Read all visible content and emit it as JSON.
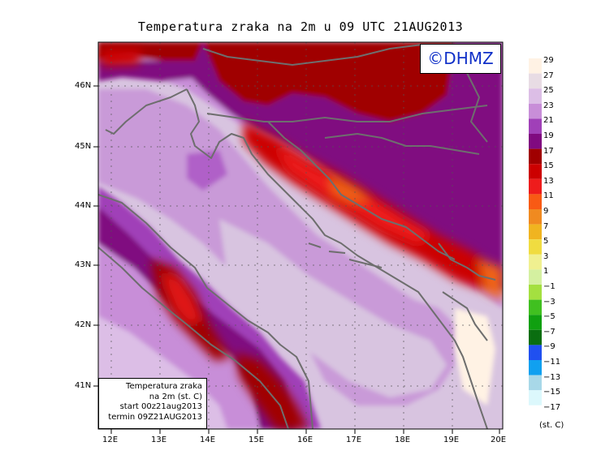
{
  "title": "Temperatura zraka na 2m u 09 UTC 21AUG2013",
  "watermark": "©DHMZ",
  "info_box": {
    "line1": "Temperatura zraka",
    "line2": "na 2m (st. C)",
    "line3": "start 00z21aug2013",
    "line4": "termin 09Z21AUG2013"
  },
  "map": {
    "lon_labels": [
      "12E",
      "13E",
      "14E",
      "15E",
      "16E",
      "17E",
      "18E",
      "19E",
      "20E"
    ],
    "lat_labels": [
      "46N",
      "45N",
      "44N",
      "43N",
      "42N",
      "41N"
    ],
    "lon_range": [
      11.75,
      20.0
    ],
    "lat_range": [
      40.25,
      46.8
    ],
    "grid": true,
    "land_colors": {
      "coastal_plain": "#c99ad8",
      "islands": "#cfa8e0",
      "adriatic_sea": "#d8c4e0",
      "hills": "#b060c8",
      "mountains_purple": "#8a1e8a",
      "mountains_darkred": "#a00808",
      "peaks_red": "#e01818",
      "peaks_orange": "#f06418"
    }
  },
  "legend": {
    "unit": "(st. C)",
    "entries": [
      {
        "label": "29",
        "color": "#fff2e4"
      },
      {
        "label": "27",
        "color": "#e8dce4"
      },
      {
        "label": "25",
        "color": "#dcbee6"
      },
      {
        "label": "23",
        "color": "#c88ed8"
      },
      {
        "label": "21",
        "color": "#a040b8"
      },
      {
        "label": "19",
        "color": "#800a80"
      },
      {
        "label": "17",
        "color": "#a00000"
      },
      {
        "label": "15",
        "color": "#cc0000"
      },
      {
        "label": "13",
        "color": "#ee1c1c"
      },
      {
        "label": "11",
        "color": "#f85a14"
      },
      {
        "label": "9",
        "color": "#f08a20"
      },
      {
        "label": "7",
        "color": "#f0b420"
      },
      {
        "label": "5",
        "color": "#f0dc40"
      },
      {
        "label": "3",
        "color": "#f0f090"
      },
      {
        "label": "1",
        "color": "#d4f0a0"
      },
      {
        "label": "−1",
        "color": "#a4e040"
      },
      {
        "label": "−3",
        "color": "#40c020"
      },
      {
        "label": "−5",
        "color": "#10a010"
      },
      {
        "label": "−7",
        "color": "#0a6e10"
      },
      {
        "label": "−9",
        "color": "#2050f0"
      },
      {
        "label": "−11",
        "color": "#10a0f0"
      },
      {
        "label": "−13",
        "color": "#a8d8e8"
      },
      {
        "label": "−15",
        "color": "#dcf8fc"
      },
      {
        "label": "−17",
        "color": "#ffffff"
      }
    ]
  }
}
